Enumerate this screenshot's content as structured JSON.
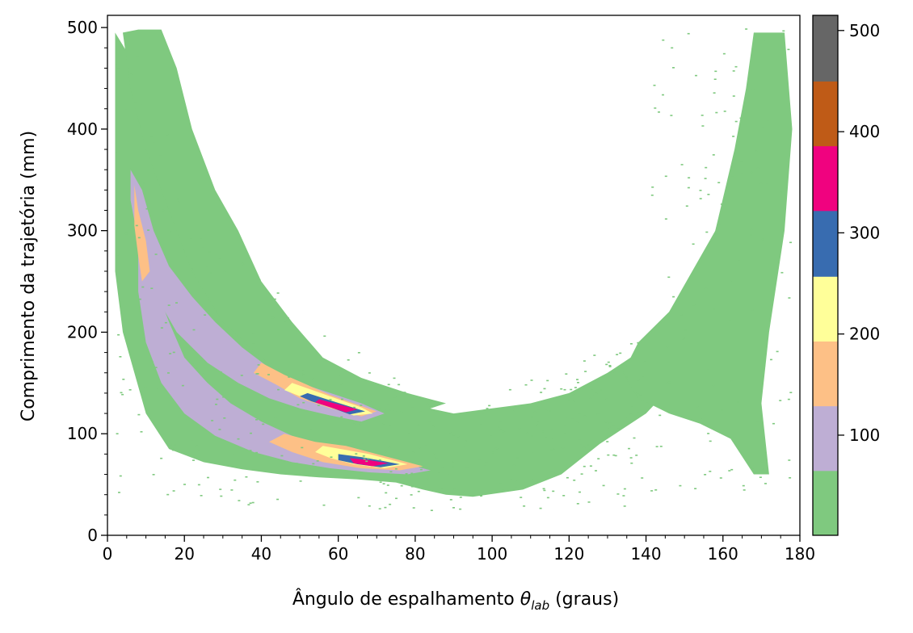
{
  "chart_data": {
    "type": "heatmap",
    "title": "",
    "xlabel_main": "Ângulo de espalhamento ",
    "xlabel_symbol": "θ",
    "xlabel_subscript": "lab",
    "xlabel_suffix": " (graus)",
    "ylabel": "Comprimento da trajetória (mm)",
    "xlim": [
      0,
      180
    ],
    "ylim": [
      0,
      512
    ],
    "x_ticks": [
      0,
      20,
      40,
      60,
      80,
      100,
      120,
      140,
      160,
      180
    ],
    "y_ticks": [
      0,
      100,
      200,
      300,
      400,
      500
    ],
    "x_tick_labels": [
      "0",
      "20",
      "40",
      "60",
      "80",
      "100",
      "120",
      "140",
      "160",
      "180"
    ],
    "y_tick_labels": [
      "0",
      "100",
      "200",
      "300",
      "400",
      "500"
    ],
    "grid": false,
    "colorbar": {
      "ticks": [
        100,
        200,
        300,
        400,
        500
      ],
      "tick_labels": [
        "100",
        "200",
        "300",
        "400",
        "500"
      ],
      "range": [
        1,
        515
      ],
      "bins": [
        {
          "min": 1,
          "max": 65,
          "color": "#7fc97f"
        },
        {
          "min": 65,
          "max": 129,
          "color": "#beaed4"
        },
        {
          "min": 129,
          "max": 193,
          "color": "#fdc086"
        },
        {
          "min": 193,
          "max": 257,
          "color": "#ffff99"
        },
        {
          "min": 257,
          "max": 322,
          "color": "#386cb0"
        },
        {
          "min": 322,
          "max": 386,
          "color": "#f0027f"
        },
        {
          "min": 386,
          "max": 450,
          "color": "#bf5b17"
        },
        {
          "min": 450,
          "max": 515,
          "color": "#666666"
        }
      ]
    },
    "regions": [
      {
        "name": "green envelope (forward, lower)",
        "level": 1,
        "points": [
          [
            2,
            495
          ],
          [
            6,
            470
          ],
          [
            12,
            425
          ],
          [
            18,
            375
          ],
          [
            24,
            320
          ],
          [
            30,
            280
          ],
          [
            36,
            245
          ],
          [
            44,
            205
          ],
          [
            52,
            175
          ],
          [
            60,
            155
          ],
          [
            70,
            140
          ],
          [
            80,
            128
          ],
          [
            90,
            120
          ],
          [
            100,
            125
          ],
          [
            110,
            130
          ],
          [
            120,
            140
          ],
          [
            130,
            160
          ],
          [
            140,
            185
          ],
          [
            148,
            210
          ],
          [
            154,
            250
          ],
          [
            158,
            300
          ],
          [
            160,
            330
          ],
          [
            160,
            260
          ],
          [
            156,
            200
          ],
          [
            150,
            160
          ],
          [
            140,
            120
          ],
          [
            128,
            90
          ],
          [
            118,
            60
          ],
          [
            108,
            45
          ],
          [
            95,
            38
          ],
          [
            88,
            40
          ],
          [
            82,
            45
          ],
          [
            75,
            52
          ],
          [
            65,
            55
          ],
          [
            55,
            57
          ],
          [
            45,
            60
          ],
          [
            35,
            65
          ],
          [
            25,
            72
          ],
          [
            16,
            85
          ],
          [
            10,
            120
          ],
          [
            7,
            160
          ],
          [
            4,
            200
          ],
          [
            2,
            260
          ]
        ]
      },
      {
        "name": "green envelope (forward, upper)",
        "level": 1,
        "points": [
          [
            4,
            495
          ],
          [
            8,
            498
          ],
          [
            14,
            498
          ],
          [
            18,
            460
          ],
          [
            22,
            400
          ],
          [
            28,
            340
          ],
          [
            34,
            300
          ],
          [
            40,
            250
          ],
          [
            48,
            210
          ],
          [
            56,
            175
          ],
          [
            66,
            155
          ],
          [
            78,
            140
          ],
          [
            88,
            130
          ],
          [
            80,
            120
          ],
          [
            70,
            125
          ],
          [
            60,
            135
          ],
          [
            50,
            150
          ],
          [
            40,
            175
          ],
          [
            30,
            210
          ],
          [
            22,
            260
          ],
          [
            16,
            320
          ],
          [
            10,
            380
          ],
          [
            6,
            440
          ]
        ]
      },
      {
        "name": "green band (backward, high angle)",
        "level": 1,
        "points": [
          [
            138,
            190
          ],
          [
            146,
            220
          ],
          [
            152,
            260
          ],
          [
            158,
            300
          ],
          [
            163,
            380
          ],
          [
            166,
            440
          ],
          [
            168,
            495
          ],
          [
            176,
            495
          ],
          [
            178,
            400
          ],
          [
            176,
            300
          ],
          [
            172,
            200
          ],
          [
            170,
            130
          ],
          [
            172,
            60
          ],
          [
            168,
            60
          ],
          [
            162,
            95
          ],
          [
            154,
            110
          ],
          [
            146,
            120
          ],
          [
            138,
            135
          ],
          [
            134,
            160
          ]
        ]
      },
      {
        "name": "lavender band (elastic, upper)",
        "level": 2,
        "points": [
          [
            6,
            360
          ],
          [
            9,
            340
          ],
          [
            12,
            300
          ],
          [
            16,
            265
          ],
          [
            22,
            235
          ],
          [
            28,
            210
          ],
          [
            35,
            185
          ],
          [
            42,
            165
          ],
          [
            50,
            150
          ],
          [
            58,
            140
          ],
          [
            66,
            130
          ],
          [
            72,
            120
          ],
          [
            66,
            112
          ],
          [
            58,
            118
          ],
          [
            50,
            125
          ],
          [
            42,
            135
          ],
          [
            34,
            150
          ],
          [
            26,
            170
          ],
          [
            18,
            200
          ],
          [
            12,
            240
          ],
          [
            8,
            290
          ],
          [
            6,
            330
          ]
        ]
      },
      {
        "name": "lavender band (lower)",
        "level": 2,
        "points": [
          [
            8,
            300
          ],
          [
            12,
            250
          ],
          [
            16,
            210
          ],
          [
            20,
            175
          ],
          [
            26,
            150
          ],
          [
            32,
            130
          ],
          [
            40,
            112
          ],
          [
            48,
            98
          ],
          [
            56,
            88
          ],
          [
            64,
            80
          ],
          [
            72,
            73
          ],
          [
            80,
            68
          ],
          [
            84,
            64
          ],
          [
            78,
            60
          ],
          [
            68,
            62
          ],
          [
            58,
            66
          ],
          [
            48,
            72
          ],
          [
            38,
            82
          ],
          [
            28,
            98
          ],
          [
            20,
            120
          ],
          [
            14,
            150
          ],
          [
            10,
            190
          ],
          [
            8,
            240
          ]
        ]
      },
      {
        "name": "orange band (upper)",
        "level": 3,
        "points": [
          [
            7,
            345
          ],
          [
            8,
            320
          ],
          [
            10,
            290
          ],
          [
            11,
            260
          ],
          [
            9,
            250
          ],
          [
            8,
            275
          ],
          [
            7,
            305
          ]
        ]
      },
      {
        "name": "orange band (middle)",
        "level": 3,
        "points": [
          [
            40,
            170
          ],
          [
            46,
            158
          ],
          [
            52,
            148
          ],
          [
            58,
            138
          ],
          [
            64,
            130
          ],
          [
            70,
            122
          ],
          [
            66,
            117
          ],
          [
            58,
            125
          ],
          [
            50,
            135
          ],
          [
            44,
            148
          ],
          [
            38,
            160
          ]
        ]
      },
      {
        "name": "orange spot (lower)",
        "level": 3,
        "points": [
          [
            46,
            100
          ],
          [
            54,
            92
          ],
          [
            62,
            88
          ],
          [
            70,
            80
          ],
          [
            78,
            72
          ],
          [
            82,
            68
          ],
          [
            76,
            64
          ],
          [
            66,
            66
          ],
          [
            56,
            72
          ],
          [
            48,
            82
          ],
          [
            42,
            92
          ]
        ]
      },
      {
        "name": "yellow core (upper)",
        "level": 4,
        "points": [
          [
            48,
            150
          ],
          [
            54,
            142
          ],
          [
            60,
            134
          ],
          [
            66,
            126
          ],
          [
            69,
            120
          ],
          [
            64,
            118
          ],
          [
            58,
            126
          ],
          [
            52,
            134
          ],
          [
            46,
            143
          ]
        ]
      },
      {
        "name": "yellow core (lower)",
        "level": 4,
        "points": [
          [
            56,
            88
          ],
          [
            62,
            84
          ],
          [
            68,
            80
          ],
          [
            74,
            74
          ],
          [
            78,
            70
          ],
          [
            72,
            66
          ],
          [
            64,
            70
          ],
          [
            58,
            76
          ],
          [
            54,
            82
          ]
        ]
      },
      {
        "name": "blue core (upper)",
        "level": 5,
        "points": [
          [
            52,
            140
          ],
          [
            57,
            134
          ],
          [
            62,
            128
          ],
          [
            67,
            122
          ],
          [
            63,
            119
          ],
          [
            58,
            126
          ],
          [
            53,
            132
          ],
          [
            50,
            137
          ]
        ]
      },
      {
        "name": "blue core (lower)",
        "level": 5,
        "points": [
          [
            60,
            80
          ],
          [
            66,
            77
          ],
          [
            72,
            73
          ],
          [
            76,
            70
          ],
          [
            71,
            67
          ],
          [
            65,
            70
          ],
          [
            60,
            74
          ]
        ]
      },
      {
        "name": "magenta core (upper)",
        "level": 6,
        "points": [
          [
            55,
            134
          ],
          [
            60,
            129
          ],
          [
            65,
            124
          ],
          [
            62,
            121
          ],
          [
            58,
            126
          ],
          [
            54,
            131
          ]
        ]
      },
      {
        "name": "magenta core (lower)",
        "level": 6,
        "points": [
          [
            63,
            76
          ],
          [
            68,
            74
          ],
          [
            73,
            71
          ],
          [
            69,
            68
          ],
          [
            64,
            71
          ]
        ]
      }
    ]
  }
}
